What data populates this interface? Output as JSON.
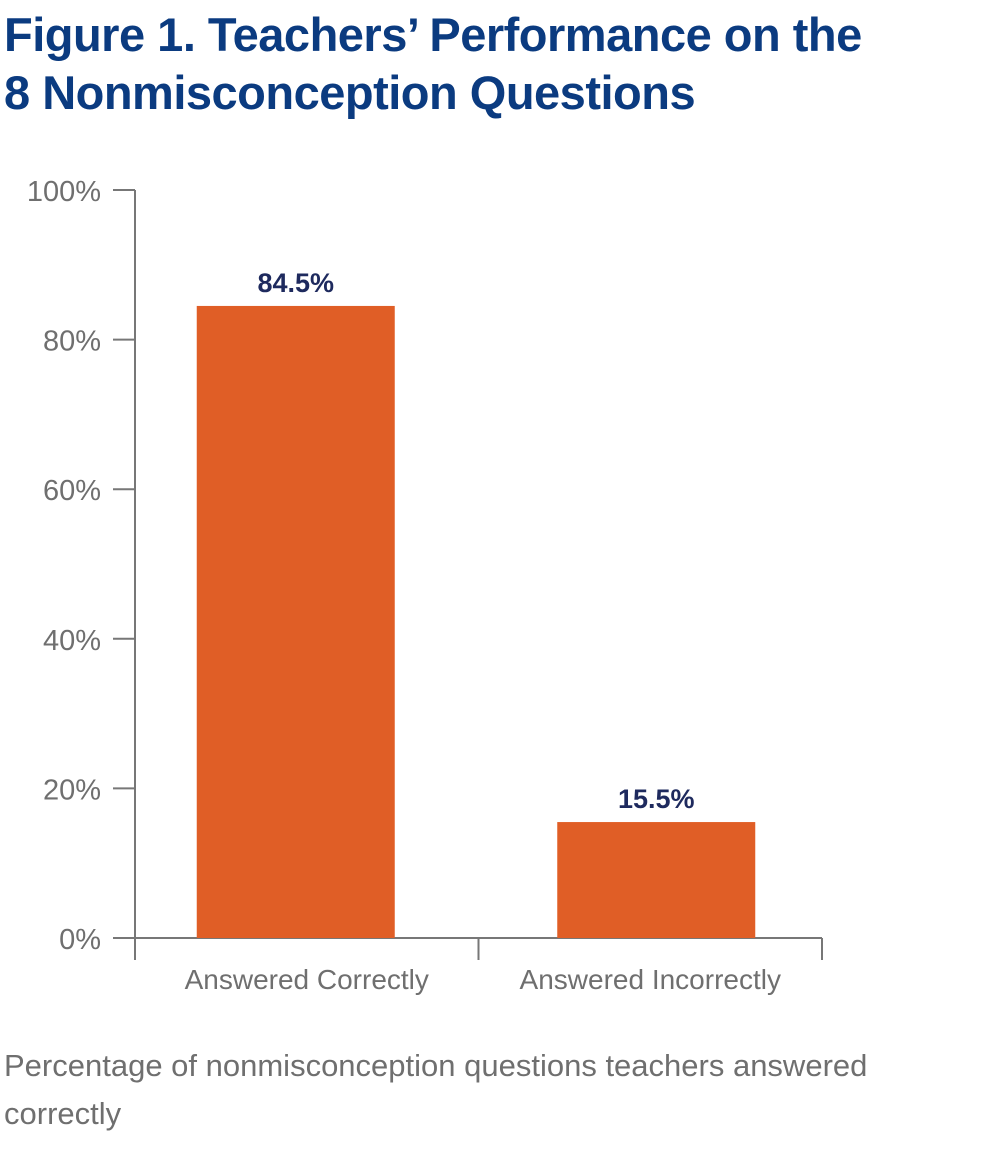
{
  "title_lines": [
    "Figure 1. Teachers’ Performance on the",
    "8 Nonmisconception Questions"
  ],
  "caption": "Percentage of nonmisconception questions teachers answered correctly",
  "colors": {
    "title": "#0b3b80",
    "bar": "#e05e26",
    "data_label": "#1e2a5e",
    "axis": "#777777",
    "tick_label": "#6f6f6f"
  },
  "chart_data": {
    "type": "bar",
    "categories": [
      "Answered Correctly",
      "Answered Incorrectly"
    ],
    "values": [
      84.5,
      15.5
    ],
    "data_labels": [
      "84.5%",
      "15.5%"
    ],
    "title": "Figure 1. Teachers’ Performance on the 8 Nonmisconception Questions",
    "xlabel": "",
    "ylabel": "",
    "ylim": [
      0,
      100
    ],
    "yticks": [
      0,
      20,
      40,
      60,
      80,
      100
    ],
    "ytick_labels": [
      "0%",
      "20%",
      "40%",
      "60%",
      "80%",
      "100%"
    ],
    "grid": false,
    "legend": "none"
  }
}
